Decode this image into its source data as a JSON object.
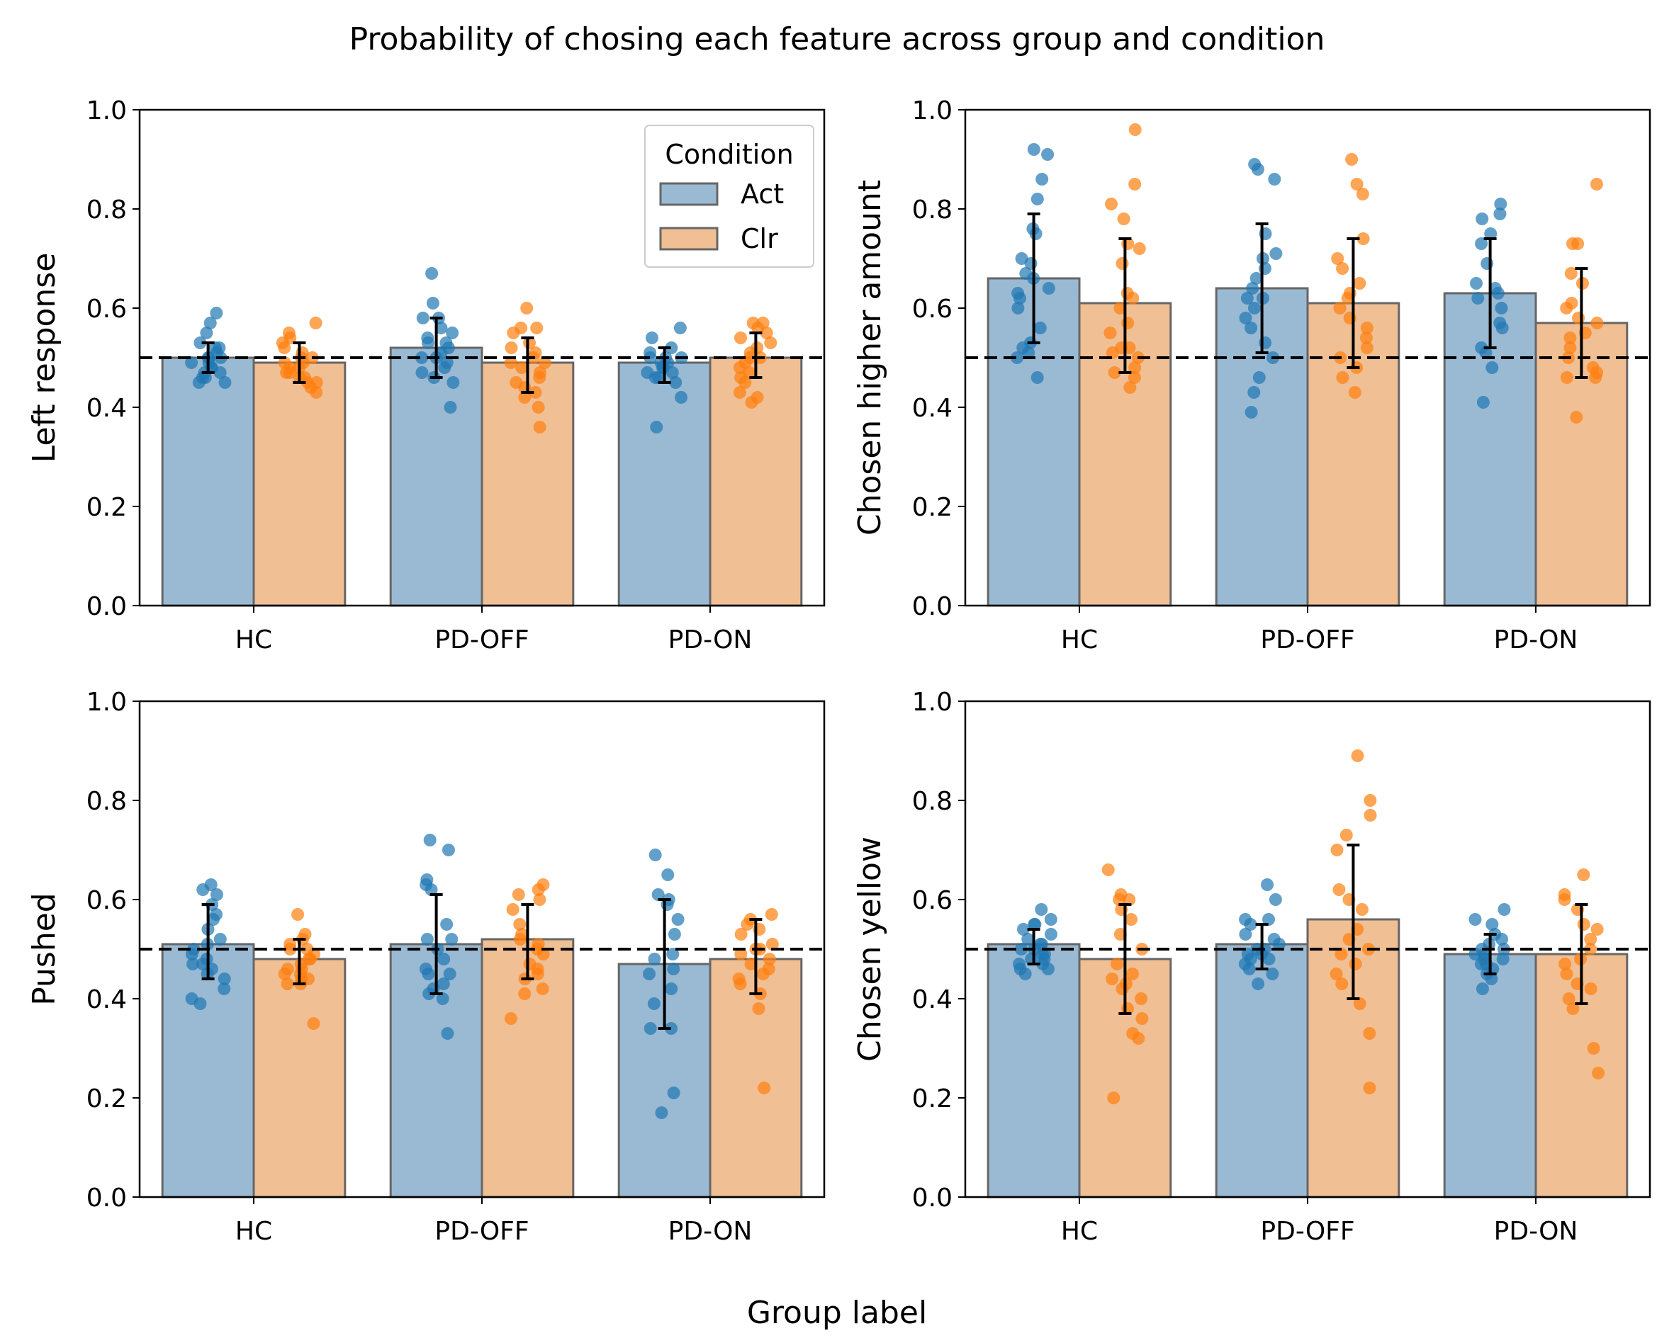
{
  "figure": {
    "title": "Probability of chosing each feature across group and condition",
    "xlabel": "Group label"
  },
  "colors": {
    "act_bar": "#9ab9d3",
    "clr_bar": "#f0bf94",
    "act_point": "#1f77b4",
    "clr_point": "#ff7f0e",
    "bar_edge": "#666666"
  },
  "chart_data": [
    {
      "type": "bar",
      "ylabel": "Left response",
      "categories": [
        "HC",
        "PD-OFF",
        "PD-ON"
      ],
      "ylim": [
        0,
        1
      ],
      "yticks": [
        "0.0",
        "0.2",
        "0.4",
        "0.6",
        "0.8",
        "1.0"
      ],
      "reference_line": 0.5,
      "legend": {
        "title": "Condition",
        "position": "upper right",
        "entries": [
          "Act",
          "Clr"
        ]
      },
      "series": [
        {
          "name": "Act",
          "values": [
            0.5,
            0.52,
            0.49
          ],
          "error_low": [
            0.47,
            0.46,
            0.45
          ],
          "error_high": [
            0.53,
            0.58,
            0.52
          ],
          "points": [
            [
              0.59,
              0.57,
              0.55,
              0.53,
              0.52,
              0.51,
              0.5,
              0.5,
              0.49,
              0.49,
              0.48,
              0.48,
              0.47,
              0.47,
              0.46,
              0.46,
              0.45,
              0.45,
              0.52,
              0.5
            ],
            [
              0.67,
              0.61,
              0.58,
              0.58,
              0.56,
              0.55,
              0.54,
              0.53,
              0.53,
              0.52,
              0.51,
              0.5,
              0.5,
              0.49,
              0.48,
              0.47,
              0.46,
              0.45,
              0.4
            ],
            [
              0.56,
              0.54,
              0.52,
              0.51,
              0.5,
              0.5,
              0.49,
              0.49,
              0.48,
              0.48,
              0.47,
              0.47,
              0.46,
              0.46,
              0.45,
              0.42,
              0.36,
              0.5
            ]
          ]
        },
        {
          "name": "Clr",
          "values": [
            0.49,
            0.49,
            0.5
          ],
          "error_low": [
            0.45,
            0.43,
            0.46
          ],
          "error_high": [
            0.53,
            0.54,
            0.55
          ],
          "points": [
            [
              0.57,
              0.55,
              0.54,
              0.53,
              0.52,
              0.51,
              0.5,
              0.5,
              0.49,
              0.49,
              0.48,
              0.48,
              0.47,
              0.47,
              0.46,
              0.46,
              0.45,
              0.45,
              0.44,
              0.43
            ],
            [
              0.6,
              0.56,
              0.56,
              0.55,
              0.53,
              0.52,
              0.51,
              0.5,
              0.49,
              0.49,
              0.48,
              0.47,
              0.46,
              0.45,
              0.44,
              0.43,
              0.42,
              0.4,
              0.36
            ],
            [
              0.57,
              0.57,
              0.56,
              0.55,
              0.54,
              0.53,
              0.52,
              0.51,
              0.5,
              0.5,
              0.49,
              0.48,
              0.47,
              0.46,
              0.45,
              0.43,
              0.42,
              0.41
            ]
          ]
        }
      ]
    },
    {
      "type": "bar",
      "ylabel": "Chosen higher amount",
      "categories": [
        "HC",
        "PD-OFF",
        "PD-ON"
      ],
      "ylim": [
        0,
        1
      ],
      "yticks": [
        "0.0",
        "0.2",
        "0.4",
        "0.6",
        "0.8",
        "1.0"
      ],
      "reference_line": 0.5,
      "series": [
        {
          "name": "Act",
          "values": [
            0.66,
            0.64,
            0.63
          ],
          "error_low": [
            0.53,
            0.51,
            0.52
          ],
          "error_high": [
            0.79,
            0.77,
            0.74
          ],
          "points": [
            [
              0.92,
              0.91,
              0.86,
              0.82,
              0.76,
              0.75,
              0.7,
              0.69,
              0.67,
              0.66,
              0.64,
              0.63,
              0.62,
              0.6,
              0.56,
              0.53,
              0.52,
              0.51,
              0.5,
              0.46
            ],
            [
              0.89,
              0.88,
              0.86,
              0.75,
              0.71,
              0.7,
              0.68,
              0.66,
              0.64,
              0.62,
              0.62,
              0.6,
              0.58,
              0.56,
              0.53,
              0.5,
              0.46,
              0.43,
              0.39
            ],
            [
              0.81,
              0.79,
              0.78,
              0.75,
              0.73,
              0.69,
              0.65,
              0.64,
              0.63,
              0.62,
              0.6,
              0.57,
              0.56,
              0.52,
              0.51,
              0.48,
              0.41
            ]
          ]
        },
        {
          "name": "Clr",
          "values": [
            0.61,
            0.61,
            0.57
          ],
          "error_low": [
            0.47,
            0.48,
            0.46
          ],
          "error_high": [
            0.74,
            0.74,
            0.68
          ],
          "points": [
            [
              0.96,
              0.85,
              0.81,
              0.78,
              0.73,
              0.72,
              0.69,
              0.63,
              0.62,
              0.6,
              0.57,
              0.55,
              0.52,
              0.52,
              0.51,
              0.5,
              0.48,
              0.47,
              0.46,
              0.44
            ],
            [
              0.9,
              0.85,
              0.83,
              0.74,
              0.7,
              0.68,
              0.65,
              0.63,
              0.62,
              0.6,
              0.58,
              0.56,
              0.54,
              0.52,
              0.5,
              0.48,
              0.46,
              0.43
            ],
            [
              0.85,
              0.73,
              0.73,
              0.67,
              0.65,
              0.61,
              0.6,
              0.58,
              0.57,
              0.55,
              0.54,
              0.52,
              0.5,
              0.48,
              0.47,
              0.46,
              0.46,
              0.38
            ]
          ]
        }
      ]
    },
    {
      "type": "bar",
      "ylabel": "Pushed",
      "categories": [
        "HC",
        "PD-OFF",
        "PD-ON"
      ],
      "ylim": [
        0,
        1
      ],
      "yticks": [
        "0.0",
        "0.2",
        "0.4",
        "0.6",
        "0.8",
        "1.0"
      ],
      "reference_line": 0.5,
      "series": [
        {
          "name": "Act",
          "values": [
            0.51,
            0.51,
            0.47
          ],
          "error_low": [
            0.44,
            0.41,
            0.34
          ],
          "error_high": [
            0.59,
            0.61,
            0.6
          ],
          "points": [
            [
              0.63,
              0.62,
              0.61,
              0.59,
              0.57,
              0.56,
              0.54,
              0.52,
              0.51,
              0.5,
              0.49,
              0.48,
              0.47,
              0.47,
              0.46,
              0.45,
              0.44,
              0.42,
              0.4,
              0.39
            ],
            [
              0.72,
              0.7,
              0.64,
              0.63,
              0.62,
              0.55,
              0.52,
              0.52,
              0.5,
              0.48,
              0.46,
              0.45,
              0.45,
              0.43,
              0.42,
              0.41,
              0.4,
              0.33
            ],
            [
              0.69,
              0.65,
              0.61,
              0.6,
              0.59,
              0.56,
              0.53,
              0.49,
              0.48,
              0.46,
              0.45,
              0.42,
              0.39,
              0.34,
              0.34,
              0.21,
              0.17
            ]
          ]
        },
        {
          "name": "Clr",
          "values": [
            0.48,
            0.52,
            0.48
          ],
          "error_low": [
            0.43,
            0.44,
            0.41
          ],
          "error_high": [
            0.52,
            0.59,
            0.56
          ],
          "points": [
            [
              0.57,
              0.53,
              0.52,
              0.51,
              0.5,
              0.5,
              0.49,
              0.48,
              0.48,
              0.47,
              0.46,
              0.46,
              0.45,
              0.45,
              0.44,
              0.44,
              0.43,
              0.43,
              0.35
            ],
            [
              0.63,
              0.62,
              0.61,
              0.6,
              0.58,
              0.55,
              0.53,
              0.52,
              0.51,
              0.5,
              0.49,
              0.47,
              0.46,
              0.45,
              0.44,
              0.42,
              0.41,
              0.36
            ],
            [
              0.57,
              0.56,
              0.55,
              0.54,
              0.53,
              0.51,
              0.5,
              0.5,
              0.49,
              0.48,
              0.47,
              0.46,
              0.45,
              0.44,
              0.43,
              0.41,
              0.38,
              0.22
            ]
          ]
        }
      ]
    },
    {
      "type": "bar",
      "ylabel": "Chosen yellow",
      "categories": [
        "HC",
        "PD-OFF",
        "PD-ON"
      ],
      "ylim": [
        0,
        1
      ],
      "yticks": [
        "0.0",
        "0.2",
        "0.4",
        "0.6",
        "0.8",
        "1.0"
      ],
      "reference_line": 0.5,
      "series": [
        {
          "name": "Act",
          "values": [
            0.51,
            0.51,
            0.49
          ],
          "error_low": [
            0.47,
            0.46,
            0.45
          ],
          "error_high": [
            0.54,
            0.55,
            0.53
          ],
          "points": [
            [
              0.58,
              0.56,
              0.55,
              0.54,
              0.53,
              0.52,
              0.51,
              0.51,
              0.5,
              0.5,
              0.49,
              0.49,
              0.48,
              0.48,
              0.47,
              0.47,
              0.46,
              0.46,
              0.45,
              0.55
            ],
            [
              0.63,
              0.6,
              0.56,
              0.56,
              0.55,
              0.53,
              0.52,
              0.51,
              0.5,
              0.5,
              0.49,
              0.49,
              0.48,
              0.48,
              0.47,
              0.46,
              0.45,
              0.43
            ],
            [
              0.58,
              0.56,
              0.55,
              0.53,
              0.52,
              0.51,
              0.5,
              0.5,
              0.49,
              0.49,
              0.48,
              0.48,
              0.47,
              0.47,
              0.46,
              0.45,
              0.44,
              0.42
            ]
          ]
        },
        {
          "name": "Clr",
          "values": [
            0.48,
            0.56,
            0.49
          ],
          "error_low": [
            0.37,
            0.4,
            0.39
          ],
          "error_high": [
            0.59,
            0.71,
            0.59
          ],
          "points": [
            [
              0.66,
              0.61,
              0.6,
              0.6,
              0.58,
              0.56,
              0.53,
              0.5,
              0.47,
              0.45,
              0.44,
              0.43,
              0.42,
              0.4,
              0.38,
              0.36,
              0.33,
              0.32,
              0.2
            ],
            [
              0.89,
              0.8,
              0.77,
              0.73,
              0.7,
              0.62,
              0.6,
              0.58,
              0.54,
              0.52,
              0.5,
              0.49,
              0.47,
              0.45,
              0.43,
              0.39,
              0.33,
              0.22
            ],
            [
              0.65,
              0.61,
              0.6,
              0.58,
              0.55,
              0.54,
              0.52,
              0.5,
              0.48,
              0.47,
              0.45,
              0.43,
              0.42,
              0.4,
              0.38,
              0.3,
              0.25
            ]
          ]
        }
      ]
    }
  ]
}
